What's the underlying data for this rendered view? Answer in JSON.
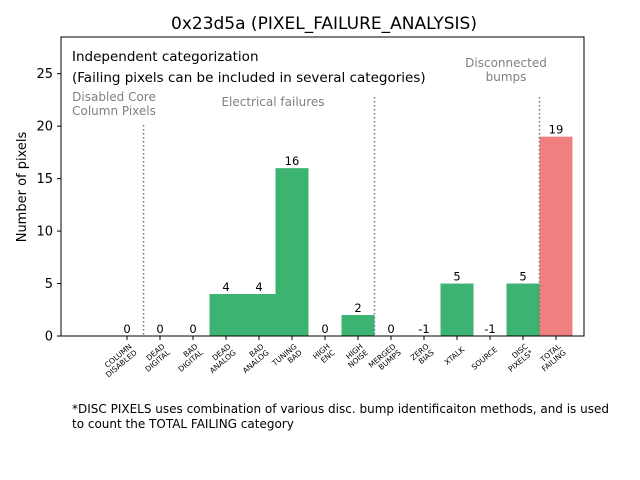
{
  "chart_data": {
    "type": "bar",
    "title": "0x23d5a (PIXEL_FAILURE_ANALYSIS)",
    "xlabel": "",
    "ylabel": "Number of pixels",
    "ylim": [
      0,
      28.5
    ],
    "yticks": [
      0,
      5,
      10,
      15,
      20,
      25
    ],
    "categories": [
      {
        "id": "column-disabled",
        "lines": [
          "COLUMN",
          "DISABLED"
        ]
      },
      {
        "id": "dead-digital",
        "lines": [
          "DEAD",
          "DIGITAL"
        ]
      },
      {
        "id": "bad-digital",
        "lines": [
          "BAD",
          "DIGITAL"
        ]
      },
      {
        "id": "dead-analog",
        "lines": [
          "DEAD",
          "ANALOG"
        ]
      },
      {
        "id": "bad-analog",
        "lines": [
          "BAD",
          "ANALOG"
        ]
      },
      {
        "id": "tuning-bad",
        "lines": [
          "TUNING",
          "BAD"
        ]
      },
      {
        "id": "high-enc",
        "lines": [
          "HIGH",
          "ENC"
        ]
      },
      {
        "id": "high-noise",
        "lines": [
          "HIGH",
          "NOISE"
        ]
      },
      {
        "id": "merged-bumps",
        "lines": [
          "MERGED",
          "BUMPS"
        ]
      },
      {
        "id": "zero-bias",
        "lines": [
          "ZERO",
          "BIAS"
        ]
      },
      {
        "id": "xtalk",
        "lines": [
          "XTALK"
        ]
      },
      {
        "id": "source",
        "lines": [
          "SOURCE"
        ]
      },
      {
        "id": "disc-pixels",
        "lines": [
          "DISC",
          "PIXELS*"
        ]
      },
      {
        "id": "total-failing",
        "lines": [
          "TOTAL",
          "FAILING"
        ]
      }
    ],
    "values": [
      0,
      0,
      0,
      4,
      4,
      16,
      0,
      2,
      0,
      -1,
      5,
      -1,
      5,
      19
    ],
    "value_labels": [
      "0",
      "0",
      "0",
      "4",
      "4",
      "16",
      "0",
      "2",
      "0",
      "-1",
      "5",
      "-1",
      "5",
      "19"
    ],
    "colors": {
      "default": "#3cb371",
      "total": "#f08080"
    },
    "separators_after_index": [
      0,
      7,
      12
    ],
    "group_labels": [
      {
        "id": "disabled-core",
        "lines": [
          "Disabled Core",
          "Column Pixels"
        ]
      },
      {
        "id": "electrical",
        "lines": [
          "Electrical failures"
        ]
      },
      {
        "id": "disconnected",
        "lines": [
          "Disconnected",
          "bumps"
        ]
      }
    ],
    "annotations": {
      "line1": "Independent categorization",
      "line2": "(Failing pixels can be included in several categories)"
    },
    "footnote": {
      "line1": "*DISC PIXELS uses combination of various disc. bump identificaiton methods, and is used",
      "line2": "to count the TOTAL FAILING category"
    }
  }
}
